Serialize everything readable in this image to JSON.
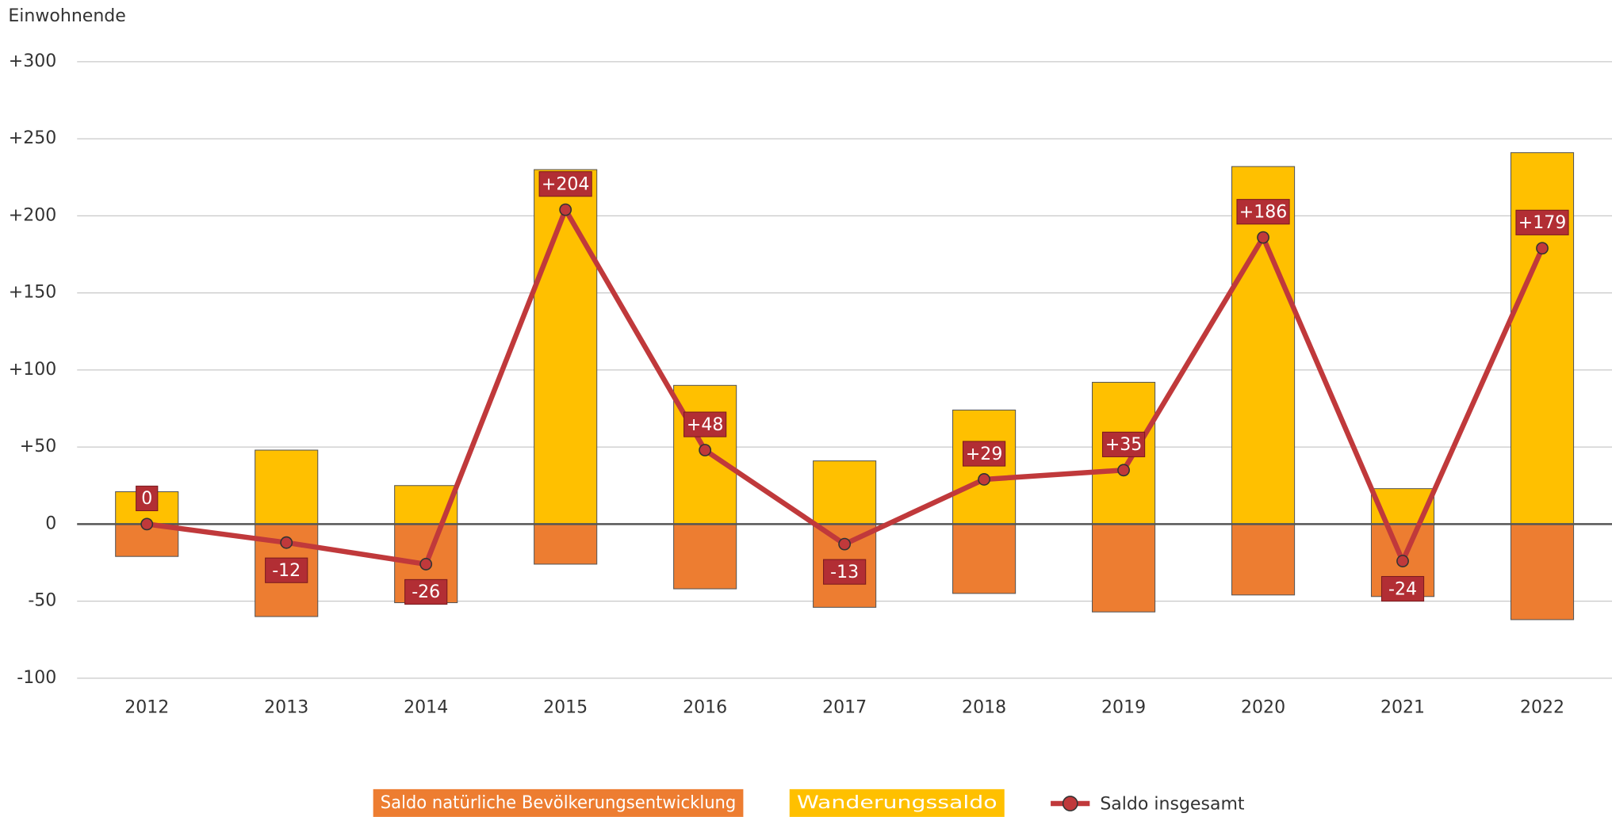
{
  "chart_data": {
    "type": "bar",
    "y_label": "Einwohnende",
    "categories": [
      "2012",
      "2013",
      "2014",
      "2015",
      "2016",
      "2017",
      "2018",
      "2019",
      "2020",
      "2021",
      "2022"
    ],
    "series": [
      {
        "name": "Saldo natürliche Bevölkerungsentwicklung",
        "color": "#ed7d31",
        "values": [
          -21,
          -60,
          -51,
          -26,
          -42,
          -54,
          -45,
          -57,
          -46,
          -47,
          -62
        ]
      },
      {
        "name": "Wanderungssaldo",
        "color": "#ffc000",
        "values": [
          21,
          48,
          25,
          230,
          90,
          41,
          74,
          92,
          232,
          23,
          241
        ]
      },
      {
        "name": "Saldo insgesamt",
        "type": "line",
        "color": "#c0393b",
        "values": [
          0,
          -12,
          -26,
          204,
          48,
          -13,
          29,
          35,
          186,
          -24,
          179
        ],
        "value_labels": [
          "0",
          "-12",
          "-26",
          "+204",
          "+48",
          "-13",
          "+29",
          "+35",
          "+186",
          "-24",
          "+179"
        ]
      }
    ],
    "ylim": [
      -100,
      300
    ],
    "yticks": [
      {
        "value": 300,
        "label": "+300"
      },
      {
        "value": 250,
        "label": "+250"
      },
      {
        "value": 200,
        "label": "+200"
      },
      {
        "value": 150,
        "label": "+150"
      },
      {
        "value": 100,
        "label": "+100"
      },
      {
        "value": 50,
        "label": "+50"
      },
      0,
      -50,
      -100
    ],
    "grid": true,
    "legend": "bottom"
  }
}
